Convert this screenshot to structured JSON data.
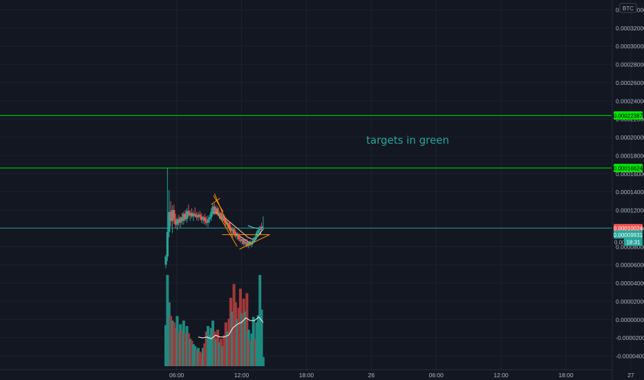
{
  "currency_label": "BTC",
  "colors": {
    "background": "#131722",
    "grid": "#1e222d",
    "up": "#26a69a",
    "down": "#ef5350",
    "vol_up": "#1f8a80",
    "vol_down": "#a33a3a",
    "target": "#00e600",
    "trendline": "#ff9800",
    "ma1": "#ffffff",
    "ma2": "#f4b183"
  },
  "chart_data": {
    "type": "candlestick",
    "price_axis": {
      "ylim": [
        -4e-05,
        0.00034
      ],
      "tick_labels": [
        "0.00034000",
        "0.00032000",
        "0.00030000",
        "0.00028000",
        "0.00026000",
        "0.00024000",
        "0.00022000",
        "0.00020000",
        "0.00018000",
        "0.00016000",
        "0.00014000",
        "0.00012000",
        "0.00010000",
        "0.00008000",
        "0.00006000",
        "0.00004000",
        "0.00002000",
        "0.00000000",
        "-0.00002000",
        "-0.00004000"
      ],
      "tick_values": [
        0.00034,
        0.00032,
        0.0003,
        0.00028,
        0.00026,
        0.00024,
        0.00022,
        0.0002,
        0.00018,
        0.00016,
        0.00014,
        0.00012,
        0.0001,
        8e-05,
        6e-05,
        4e-05,
        2e-05,
        0.0,
        -2e-05,
        -4e-05
      ]
    },
    "time_axis": {
      "labels": [
        "06:00",
        "12:00",
        "18:00",
        "26",
        "06:00",
        "12:00",
        "18:00",
        "27"
      ],
      "hours": [
        6,
        12,
        18,
        24,
        30,
        36,
        42,
        48
      ]
    },
    "horizontal_lines": [
      {
        "name": "target-2",
        "value": 0.00022387,
        "label": "0.00022387",
        "color": "#00e600"
      },
      {
        "name": "target-1",
        "value": 0.00016624,
        "label": "0.00016624",
        "color": "#00e600"
      },
      {
        "name": "last-price",
        "value": 0.00010024,
        "label": "0.00010024",
        "color": "#26a69a"
      }
    ],
    "price_tags": [
      {
        "label": "0.00010024",
        "value": 0.00010024,
        "bg": "#ef5350",
        "fg": "#ffffff"
      },
      {
        "label": "0.00009931",
        "value": 9.32e-05,
        "bg": "#26a69a",
        "fg": "#ffffff"
      },
      {
        "label": "18:31",
        "value": 8.52e-05,
        "bg": "#26a69a",
        "fg": "#ffffff",
        "prefix": "0.0000"
      }
    ],
    "annotation": "targets in green",
    "candles": [
      {
        "t": 5.0,
        "o": 6e-05,
        "h": 7.1e-05,
        "l": 5.6e-05,
        "c": 6.9e-05
      },
      {
        "t": 5.15,
        "o": 6.9e-05,
        "h": 0.000166,
        "l": 6.4e-05,
        "c": 9.6e-05
      },
      {
        "t": 5.3,
        "o": 9.6e-05,
        "h": 0.000142,
        "l": 9e-05,
        "c": 0.000118
      },
      {
        "t": 5.45,
        "o": 0.000118,
        "h": 0.00013,
        "l": 0.000102,
        "c": 0.000108
      },
      {
        "t": 5.6,
        "o": 0.000108,
        "h": 0.000125,
        "l": 9.5e-05,
        "c": 0.00012
      },
      {
        "t": 5.75,
        "o": 0.00012,
        "h": 0.000126,
        "l": 0.000105,
        "c": 0.00011
      },
      {
        "t": 5.9,
        "o": 0.00011,
        "h": 0.000116,
        "l": 0.0001,
        "c": 0.000104
      },
      {
        "t": 6.05,
        "o": 0.000104,
        "h": 0.000112,
        "l": 9.8e-05,
        "c": 0.00011
      },
      {
        "t": 6.2,
        "o": 0.00011,
        "h": 0.000115,
        "l": 0.000102,
        "c": 0.000106
      },
      {
        "t": 6.35,
        "o": 0.000106,
        "h": 0.000113,
        "l": 0.0001,
        "c": 0.000112
      },
      {
        "t": 6.5,
        "o": 0.000112,
        "h": 0.000117,
        "l": 0.000104,
        "c": 0.000108
      },
      {
        "t": 6.65,
        "o": 0.000108,
        "h": 0.000118,
        "l": 0.000104,
        "c": 0.000116
      },
      {
        "t": 6.8,
        "o": 0.000116,
        "h": 0.00012,
        "l": 0.000108,
        "c": 0.00011
      },
      {
        "t": 6.95,
        "o": 0.00011,
        "h": 0.000122,
        "l": 0.000106,
        "c": 0.000119
      },
      {
        "t": 7.1,
        "o": 0.000119,
        "h": 0.000126,
        "l": 0.000112,
        "c": 0.000114
      },
      {
        "t": 7.25,
        "o": 0.000114,
        "h": 0.00012,
        "l": 0.000108,
        "c": 0.000117
      },
      {
        "t": 7.4,
        "o": 0.000117,
        "h": 0.000122,
        "l": 0.000111,
        "c": 0.000113
      },
      {
        "t": 7.55,
        "o": 0.000113,
        "h": 0.000119,
        "l": 0.000108,
        "c": 0.000116
      },
      {
        "t": 7.7,
        "o": 0.000116,
        "h": 0.000123,
        "l": 0.000112,
        "c": 0.000114
      },
      {
        "t": 7.85,
        "o": 0.000114,
        "h": 0.000118,
        "l": 0.000109,
        "c": 0.000112
      },
      {
        "t": 8.0,
        "o": 0.000112,
        "h": 0.000118,
        "l": 0.000108,
        "c": 0.000115
      },
      {
        "t": 8.15,
        "o": 0.000115,
        "h": 0.000119,
        "l": 0.00011,
        "c": 0.000113
      },
      {
        "t": 8.3,
        "o": 0.000113,
        "h": 0.000117,
        "l": 0.000106,
        "c": 0.000109
      },
      {
        "t": 8.45,
        "o": 0.000109,
        "h": 0.000114,
        "l": 0.000105,
        "c": 0.000112
      },
      {
        "t": 8.6,
        "o": 0.000112,
        "h": 0.000116,
        "l": 0.000104,
        "c": 0.000108
      },
      {
        "t": 8.75,
        "o": 0.000108,
        "h": 0.000113,
        "l": 0.000103,
        "c": 0.000106
      },
      {
        "t": 8.9,
        "o": 0.000106,
        "h": 0.000114,
        "l": 0.000101,
        "c": 0.00011
      },
      {
        "t": 9.05,
        "o": 0.00011,
        "h": 0.000115,
        "l": 0.000106,
        "c": 0.000112
      },
      {
        "t": 9.2,
        "o": 0.000112,
        "h": 0.000122,
        "l": 0.000108,
        "c": 0.000118
      },
      {
        "t": 9.35,
        "o": 0.000118,
        "h": 0.000128,
        "l": 0.000114,
        "c": 0.000124
      },
      {
        "t": 9.5,
        "o": 0.000124,
        "h": 0.000127,
        "l": 0.000115,
        "c": 0.000119
      },
      {
        "t": 9.65,
        "o": 0.000119,
        "h": 0.000125,
        "l": 0.000115,
        "c": 0.000122
      },
      {
        "t": 9.8,
        "o": 0.000122,
        "h": 0.000124,
        "l": 0.000113,
        "c": 0.000115
      },
      {
        "t": 9.95,
        "o": 0.000115,
        "h": 0.000119,
        "l": 0.00011,
        "c": 0.000117
      },
      {
        "t": 10.1,
        "o": 0.000117,
        "h": 0.000118,
        "l": 0.000109,
        "c": 0.000111
      },
      {
        "t": 10.25,
        "o": 0.000111,
        "h": 0.000116,
        "l": 0.000107,
        "c": 0.000113
      },
      {
        "t": 10.4,
        "o": 0.000113,
        "h": 0.000115,
        "l": 0.000106,
        "c": 0.000108
      },
      {
        "t": 10.55,
        "o": 0.000108,
        "h": 0.000112,
        "l": 0.000102,
        "c": 0.000104
      },
      {
        "t": 10.7,
        "o": 0.000104,
        "h": 0.000109,
        "l": 0.0001,
        "c": 0.000106
      },
      {
        "t": 10.85,
        "o": 0.000106,
        "h": 0.000108,
        "l": 9.8e-05,
        "c": 0.0001
      },
      {
        "t": 11.0,
        "o": 0.0001,
        "h": 0.000104,
        "l": 9.5e-05,
        "c": 9.7e-05
      },
      {
        "t": 11.15,
        "o": 9.7e-05,
        "h": 0.000102,
        "l": 9.3e-05,
        "c": 9.9e-05
      },
      {
        "t": 11.3,
        "o": 9.9e-05,
        "h": 0.000101,
        "l": 9.2e-05,
        "c": 9.4e-05
      },
      {
        "t": 11.45,
        "o": 9.4e-05,
        "h": 9.8e-05,
        "l": 8.9e-05,
        "c": 9.1e-05
      },
      {
        "t": 11.6,
        "o": 9.1e-05,
        "h": 9.6e-05,
        "l": 8.7e-05,
        "c": 9.3e-05
      },
      {
        "t": 11.75,
        "o": 9.3e-05,
        "h": 9.5e-05,
        "l": 8.6e-05,
        "c": 8.8e-05
      },
      {
        "t": 11.9,
        "o": 8.8e-05,
        "h": 9.2e-05,
        "l": 8.4e-05,
        "c": 8.6e-05
      },
      {
        "t": 12.05,
        "o": 8.6e-05,
        "h": 9e-05,
        "l": 8.2e-05,
        "c": 8.8e-05
      },
      {
        "t": 12.2,
        "o": 8.8e-05,
        "h": 8.9e-05,
        "l": 8.1e-05,
        "c": 8.3e-05
      },
      {
        "t": 12.35,
        "o": 8.3e-05,
        "h": 8.7e-05,
        "l": 8e-05,
        "c": 8.5e-05
      },
      {
        "t": 12.5,
        "o": 8.5e-05,
        "h": 8.8e-05,
        "l": 7.9e-05,
        "c": 8.1e-05
      },
      {
        "t": 12.65,
        "o": 8.1e-05,
        "h": 8.6e-05,
        "l": 7.8e-05,
        "c": 8.4e-05
      },
      {
        "t": 12.8,
        "o": 8.4e-05,
        "h": 8.7e-05,
        "l": 8e-05,
        "c": 8.2e-05
      },
      {
        "t": 12.95,
        "o": 8.2e-05,
        "h": 8.6e-05,
        "l": 7.9e-05,
        "c": 8.5e-05
      },
      {
        "t": 13.1,
        "o": 8.5e-05,
        "h": 9e-05,
        "l": 8.3e-05,
        "c": 8.8e-05
      },
      {
        "t": 13.25,
        "o": 8.8e-05,
        "h": 9.2e-05,
        "l": 8.5e-05,
        "c": 9e-05
      },
      {
        "t": 13.4,
        "o": 9e-05,
        "h": 9.7e-05,
        "l": 8.8e-05,
        "c": 9.5e-05
      },
      {
        "t": 13.55,
        "o": 9.5e-05,
        "h": 0.0001,
        "l": 9.2e-05,
        "c": 9.8e-05
      },
      {
        "t": 13.7,
        "o": 9.8e-05,
        "h": 0.000103,
        "l": 9.5e-05,
        "c": 0.000101
      },
      {
        "t": 13.85,
        "o": 0.000101,
        "h": 0.000106,
        "l": 9.8e-05,
        "c": 0.0001
      },
      {
        "t": 14.0,
        "o": 0.0001,
        "h": 0.000113,
        "l": 9.8e-05,
        "c": 0.0001002
      }
    ],
    "volume": {
      "ylim": [
        0,
        100
      ],
      "bars": [
        {
          "t": 5.0,
          "v": 45,
          "up": true
        },
        {
          "t": 5.15,
          "v": 100,
          "up": true
        },
        {
          "t": 5.3,
          "v": 70,
          "up": true
        },
        {
          "t": 5.45,
          "v": 55,
          "up": false
        },
        {
          "t": 5.6,
          "v": 50,
          "up": true
        },
        {
          "t": 5.75,
          "v": 48,
          "up": false
        },
        {
          "t": 5.9,
          "v": 42,
          "up": false
        },
        {
          "t": 6.05,
          "v": 55,
          "up": true
        },
        {
          "t": 6.2,
          "v": 38,
          "up": false
        },
        {
          "t": 6.35,
          "v": 46,
          "up": true
        },
        {
          "t": 6.5,
          "v": 40,
          "up": false
        },
        {
          "t": 6.65,
          "v": 50,
          "up": true
        },
        {
          "t": 6.8,
          "v": 35,
          "up": false
        },
        {
          "t": 6.95,
          "v": 44,
          "up": true
        },
        {
          "t": 7.1,
          "v": 36,
          "up": false
        },
        {
          "t": 7.25,
          "v": 30,
          "up": true
        },
        {
          "t": 7.4,
          "v": 28,
          "up": false
        },
        {
          "t": 7.55,
          "v": 24,
          "up": true
        },
        {
          "t": 7.7,
          "v": 22,
          "up": true
        },
        {
          "t": 7.85,
          "v": 18,
          "up": false
        },
        {
          "t": 8.0,
          "v": 20,
          "up": true
        },
        {
          "t": 8.15,
          "v": 16,
          "up": false
        },
        {
          "t": 8.3,
          "v": 14,
          "up": false
        },
        {
          "t": 8.45,
          "v": 20,
          "up": true
        },
        {
          "t": 8.6,
          "v": 25,
          "up": false
        },
        {
          "t": 8.75,
          "v": 38,
          "up": false
        },
        {
          "t": 8.9,
          "v": 44,
          "up": true
        },
        {
          "t": 9.05,
          "v": 34,
          "up": true
        },
        {
          "t": 9.2,
          "v": 42,
          "up": true
        },
        {
          "t": 9.35,
          "v": 50,
          "up": true
        },
        {
          "t": 9.5,
          "v": 38,
          "up": false
        },
        {
          "t": 9.65,
          "v": 30,
          "up": true
        },
        {
          "t": 9.8,
          "v": 40,
          "up": false
        },
        {
          "t": 9.95,
          "v": 26,
          "up": true
        },
        {
          "t": 10.1,
          "v": 30,
          "up": false
        },
        {
          "t": 10.25,
          "v": 22,
          "up": true
        },
        {
          "t": 10.4,
          "v": 34,
          "up": false
        },
        {
          "t": 10.55,
          "v": 48,
          "up": false
        },
        {
          "t": 10.7,
          "v": 38,
          "up": true
        },
        {
          "t": 10.85,
          "v": 52,
          "up": false
        },
        {
          "t": 11.0,
          "v": 75,
          "up": false
        },
        {
          "t": 11.15,
          "v": 60,
          "up": true
        },
        {
          "t": 11.3,
          "v": 90,
          "up": false
        },
        {
          "t": 11.45,
          "v": 70,
          "up": false
        },
        {
          "t": 11.6,
          "v": 52,
          "up": true
        },
        {
          "t": 11.75,
          "v": 64,
          "up": false
        },
        {
          "t": 11.9,
          "v": 85,
          "up": false
        },
        {
          "t": 12.05,
          "v": 58,
          "up": true
        },
        {
          "t": 12.2,
          "v": 74,
          "up": false
        },
        {
          "t": 12.35,
          "v": 60,
          "up": true
        },
        {
          "t": 12.5,
          "v": 80,
          "up": false
        },
        {
          "t": 12.65,
          "v": 40,
          "up": true
        },
        {
          "t": 12.8,
          "v": 28,
          "up": false
        },
        {
          "t": 12.95,
          "v": 36,
          "up": true
        },
        {
          "t": 13.1,
          "v": 54,
          "up": true
        },
        {
          "t": 13.25,
          "v": 30,
          "up": false
        },
        {
          "t": 13.4,
          "v": 48,
          "up": true
        },
        {
          "t": 13.55,
          "v": 56,
          "up": true
        },
        {
          "t": 13.7,
          "v": 100,
          "up": true
        },
        {
          "t": 13.85,
          "v": 62,
          "up": true
        },
        {
          "t": 14.0,
          "v": 10,
          "up": true
        }
      ],
      "ma": [
        {
          "t": 8.0,
          "v": 32
        },
        {
          "t": 8.4,
          "v": 31
        },
        {
          "t": 8.8,
          "v": 32
        },
        {
          "t": 9.2,
          "v": 30
        },
        {
          "t": 9.6,
          "v": 34
        },
        {
          "t": 10.0,
          "v": 32
        },
        {
          "t": 10.4,
          "v": 32
        },
        {
          "t": 10.8,
          "v": 34
        },
        {
          "t": 11.2,
          "v": 42
        },
        {
          "t": 11.6,
          "v": 46
        },
        {
          "t": 12.0,
          "v": 48
        },
        {
          "t": 12.4,
          "v": 53
        },
        {
          "t": 12.8,
          "v": 50
        },
        {
          "t": 13.2,
          "v": 50
        },
        {
          "t": 13.6,
          "v": 54
        },
        {
          "t": 14.0,
          "v": 48
        }
      ]
    },
    "price_ma": {
      "ma1": [
        {
          "t": 9.2,
          "v": 0.000117
        },
        {
          "t": 9.6,
          "v": 0.000118
        },
        {
          "t": 10.0,
          "v": 0.000113
        },
        {
          "t": 10.4,
          "v": 0.000108
        },
        {
          "t": 10.8,
          "v": 0.000103
        },
        {
          "t": 11.2,
          "v": 9.8e-05
        },
        {
          "t": 11.6,
          "v": 9.3e-05
        },
        {
          "t": 12.0,
          "v": 9e-05
        },
        {
          "t": 12.4,
          "v": 8.7e-05
        },
        {
          "t": 12.8,
          "v": 8.4e-05
        },
        {
          "t": 13.2,
          "v": 8.6e-05
        },
        {
          "t": 13.6,
          "v": 9.3e-05
        },
        {
          "t": 14.0,
          "v": 9.9e-05
        }
      ],
      "ma2": [
        {
          "t": 9.4,
          "v": 0.000116
        },
        {
          "t": 9.8,
          "v": 0.000117
        },
        {
          "t": 10.2,
          "v": 0.000114
        },
        {
          "t": 10.6,
          "v": 0.00011
        },
        {
          "t": 11.0,
          "v": 0.000106
        },
        {
          "t": 11.4,
          "v": 0.000102
        },
        {
          "t": 11.8,
          "v": 9.8e-05
        },
        {
          "t": 12.2,
          "v": 9.4e-05
        },
        {
          "t": 12.6,
          "v": 9e-05
        },
        {
          "t": 13.0,
          "v": 8.8e-05
        },
        {
          "t": 13.4,
          "v": 9e-05
        },
        {
          "t": 13.8,
          "v": 9.5e-05
        }
      ],
      "teal": [
        {
          "t": 12.6,
          "v": 0.000103
        },
        {
          "t": 13.0,
          "v": 0.000101
        },
        {
          "t": 13.4,
          "v": 0.0001
        },
        {
          "t": 13.8,
          "v": 0.000101
        },
        {
          "t": 14.0,
          "v": 0.0001015
        }
      ]
    },
    "trendlines": [
      {
        "t1": 9.4,
        "v1": 0.000136,
        "t2": 10.3,
        "v2": 0.000118
      },
      {
        "t1": 9.2,
        "v1": 0.000126,
        "t2": 10.0,
        "v2": 0.000133
      },
      {
        "t1": 9.5,
        "v1": 0.000138,
        "t2": 11.2,
        "v2": 9e-05
      },
      {
        "t1": 9.6,
        "v1": 0.00012,
        "t2": 11.6,
        "v2": 8e-05
      },
      {
        "t1": 10.2,
        "v1": 9.3e-05,
        "t2": 14.6,
        "v2": 9.3e-05
      },
      {
        "t1": 11.8,
        "v1": 7.7e-05,
        "t2": 14.6,
        "v2": 9.3e-05
      }
    ]
  }
}
